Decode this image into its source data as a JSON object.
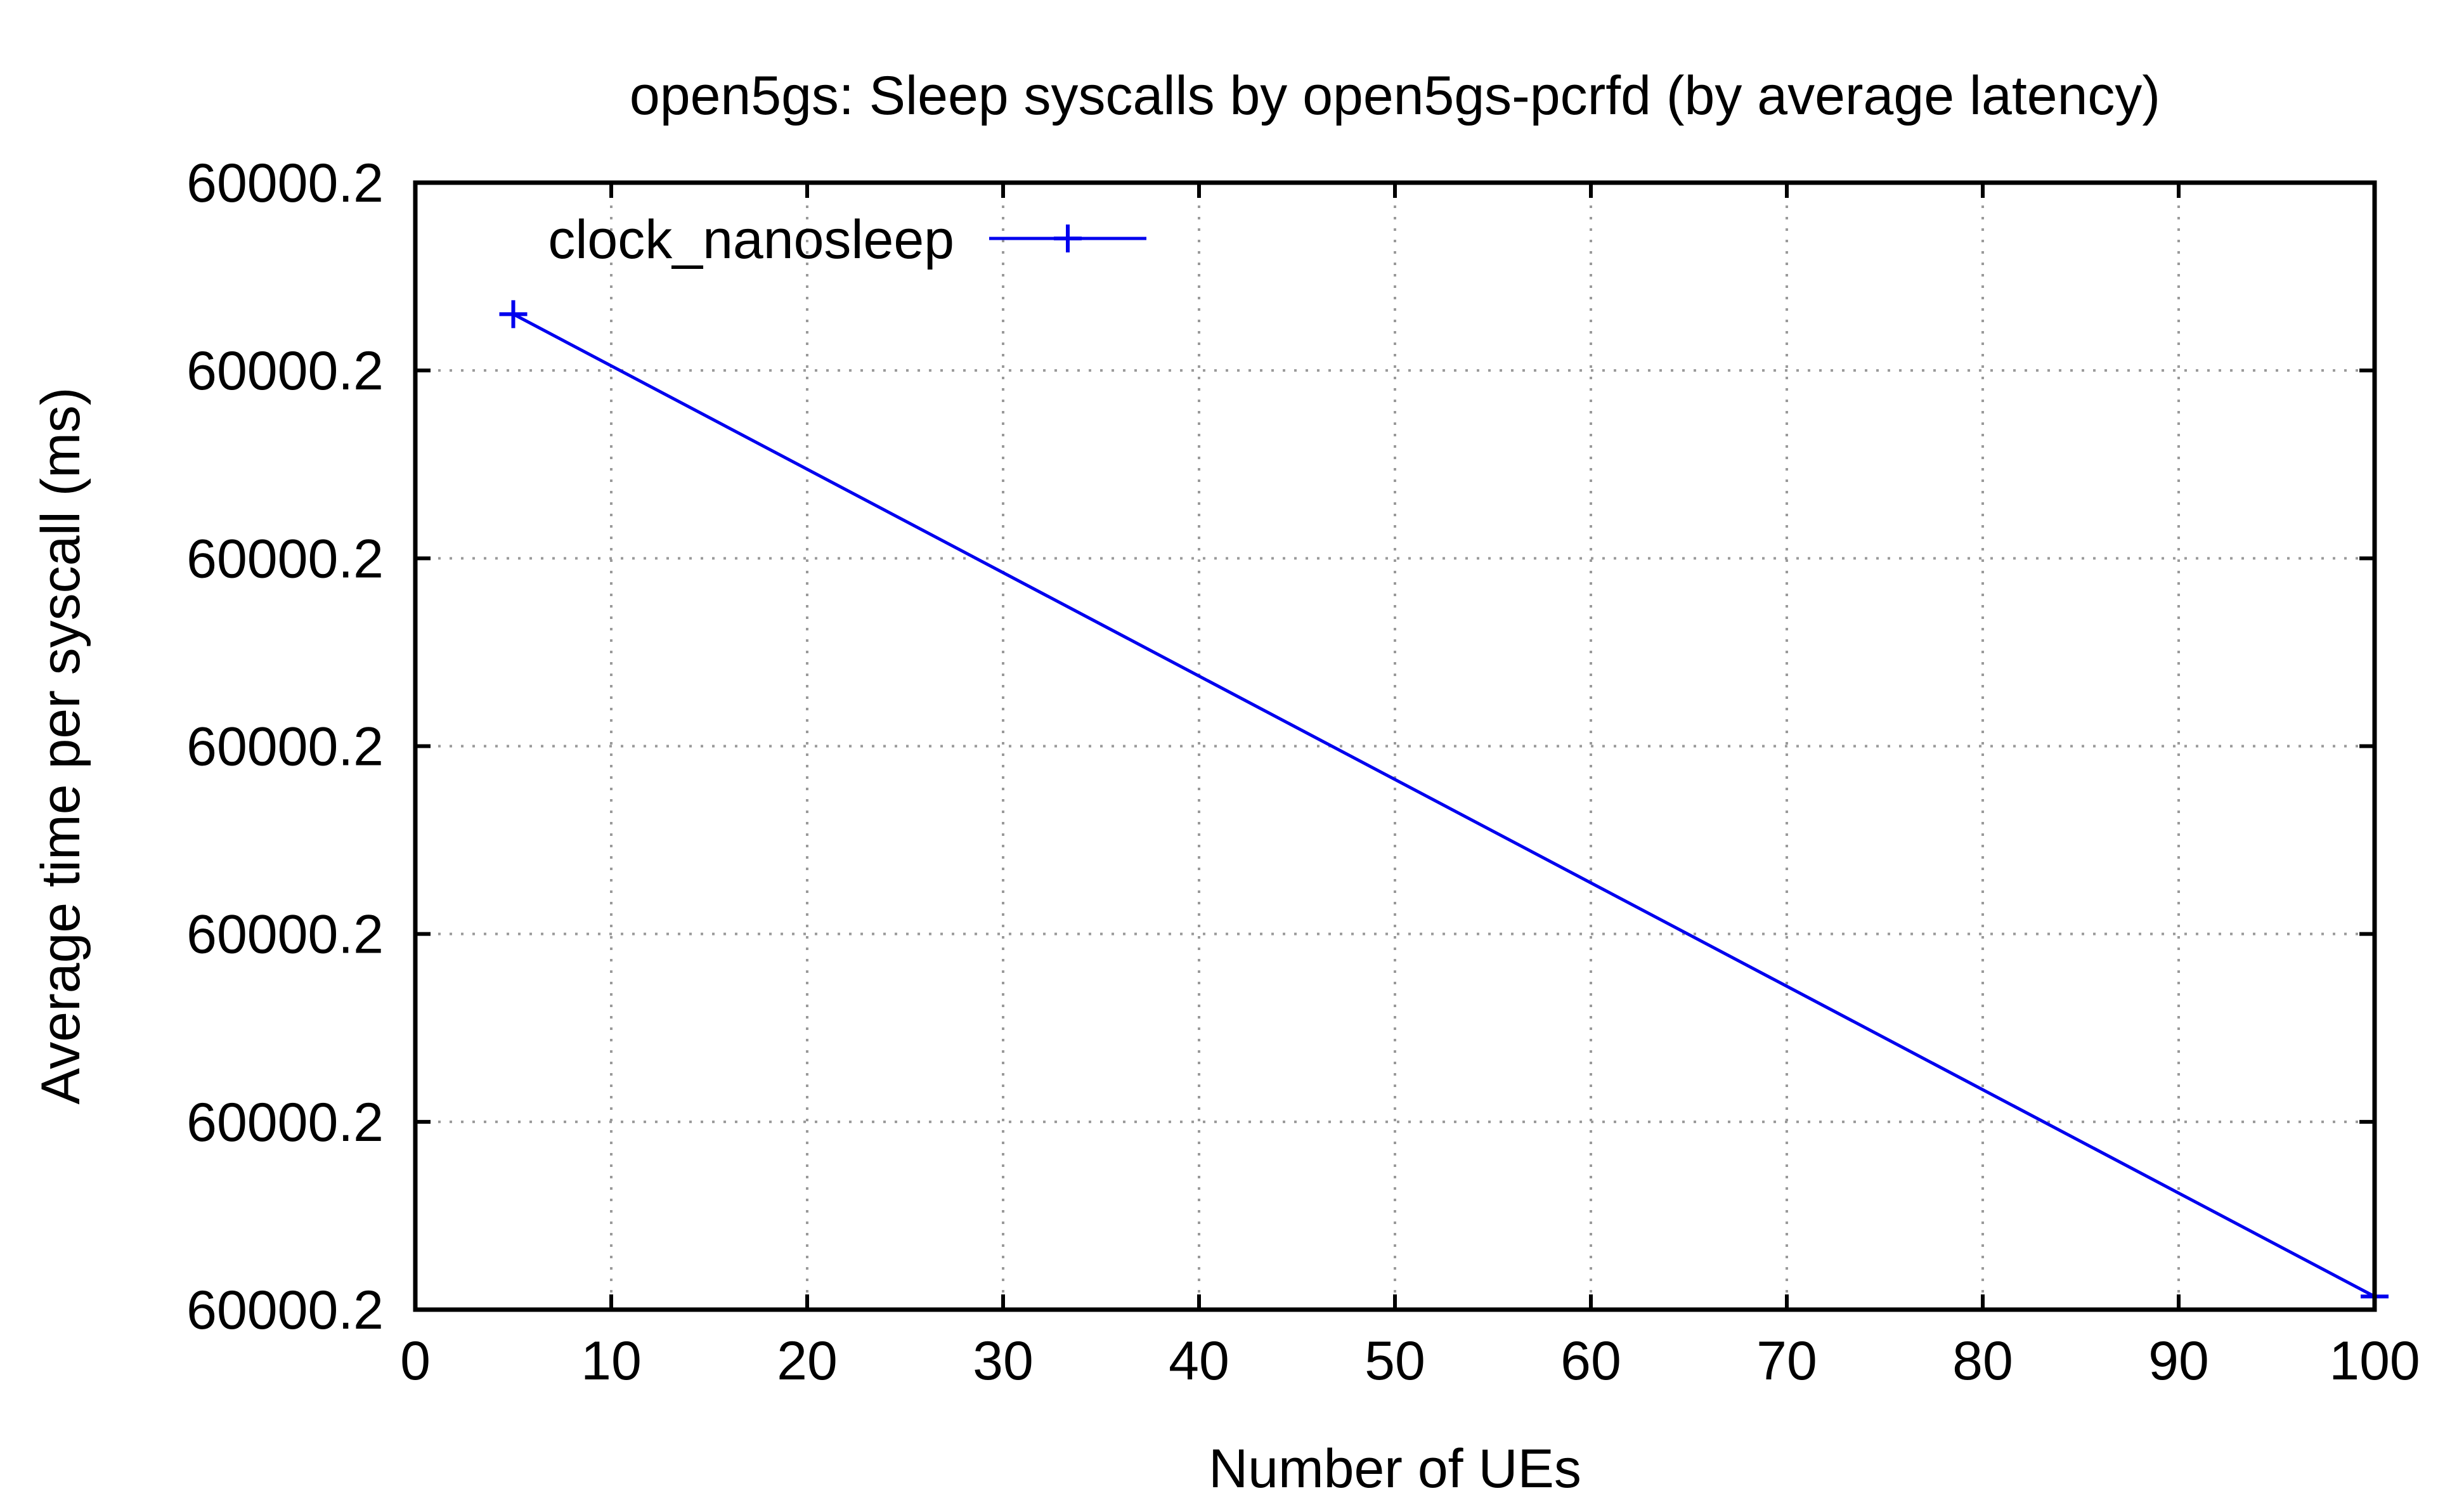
{
  "chart_data": {
    "type": "line",
    "title": "open5gs: Sleep syscalls by open5gs-pcrfd (by average latency)",
    "xlabel": "Number of UEs",
    "ylabel": "Average time per syscall (ms)",
    "xlim": [
      0,
      100
    ],
    "ylim": [
      0,
      6
    ],
    "x_ticks": [
      0,
      10,
      20,
      30,
      40,
      50,
      60,
      70,
      80,
      90,
      100
    ],
    "x_tick_labels": [
      "0",
      "10",
      "20",
      "30",
      "40",
      "50",
      "60",
      "70",
      "80",
      "90",
      "100"
    ],
    "y_ticks": [
      0,
      1,
      2,
      3,
      4,
      5,
      6
    ],
    "y_tick_labels": [
      "60000.2",
      "60000.2",
      "60000.2",
      "60000.2",
      "60000.2",
      "60000.2",
      "60000.2"
    ],
    "y_note": "y values are relative positions on the chart's tick scale; all printed tick labels read 60000.2",
    "grid": true,
    "legend_position": "top-left",
    "series": [
      {
        "name": "clock_nanosleep",
        "color": "#0000ee",
        "marker": "plus",
        "x": [
          5,
          100
        ],
        "y": [
          5.3,
          0.07
        ]
      }
    ]
  }
}
